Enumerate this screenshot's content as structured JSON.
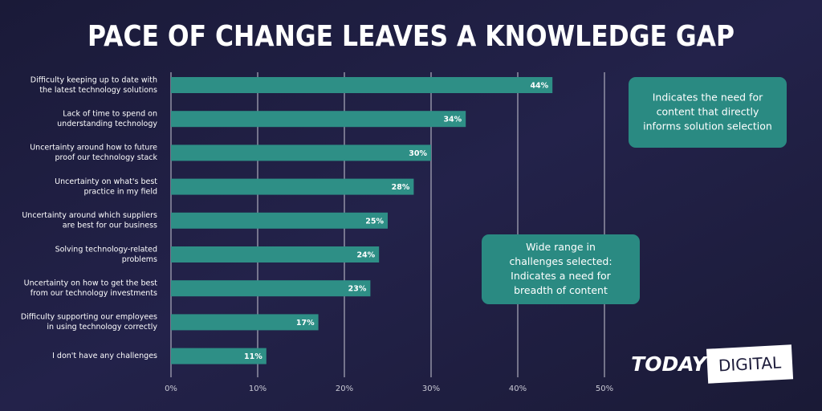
{
  "chart_data": {
    "type": "bar",
    "orientation": "horizontal",
    "title": "PACE OF CHANGE LEAVES A KNOWLEDGE GAP",
    "categories": [
      [
        "Difficulty keeping up to date with",
        "the latest technology solutions"
      ],
      [
        "Lack of time to spend on",
        "understanding technology"
      ],
      [
        "Uncertainty around how to future",
        "proof our technology stack"
      ],
      [
        "Uncertainty on what's best",
        "practice in my field"
      ],
      [
        "Uncertainty around which suppliers",
        "are best for our business"
      ],
      [
        "Solving technology-related",
        "problems"
      ],
      [
        "Uncertainty on how to get the best",
        "from our technology investments"
      ],
      [
        "Difficulty supporting our employees",
        "in using technology correctly"
      ],
      [
        "I don't have any challenges"
      ]
    ],
    "values": [
      44,
      34,
      30,
      28,
      25,
      24,
      23,
      17,
      11
    ],
    "value_labels": [
      "44%",
      "34%",
      "30%",
      "28%",
      "25%",
      "24%",
      "23%",
      "17%",
      "11%"
    ],
    "color": "#2e8f86",
    "xlim": [
      0,
      50
    ],
    "xticks": [
      {
        "value": 0,
        "label": "0%"
      },
      {
        "value": 10,
        "label": "10%"
      },
      {
        "value": 20,
        "label": "20%"
      },
      {
        "value": 30,
        "label": "30%"
      },
      {
        "value": 40,
        "label": "40%"
      },
      {
        "value": 50,
        "label": "50%"
      }
    ],
    "grid": true,
    "annotations": [
      [
        "Indicates the need for",
        "content that directly",
        "informs solution selection"
      ],
      [
        "Wide range in",
        "challenges selected:",
        "Indicates a need for",
        "breadth of content"
      ]
    ]
  },
  "logo": {
    "word1": "TODAY",
    "word2": "DIGITAL"
  }
}
